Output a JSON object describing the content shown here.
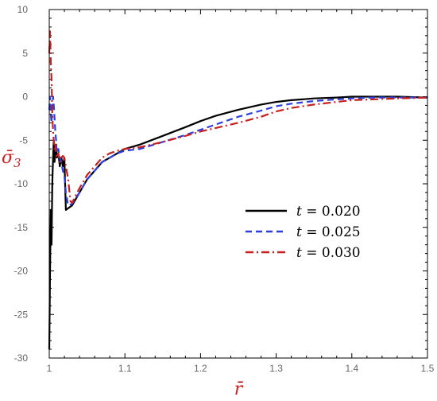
{
  "chart_data": {
    "type": "line",
    "title": "",
    "xlabel": "r̄",
    "ylabel": "σ̄",
    "ylabel_sub": "3",
    "xlim": [
      1.0,
      1.5
    ],
    "ylim": [
      -30,
      10
    ],
    "x_ticks": [
      1,
      1.1,
      1.2,
      1.3,
      1.4,
      1.5
    ],
    "x_tick_labels": [
      "1",
      "1.1",
      "1.2",
      "1.3",
      "1.4",
      "1.5"
    ],
    "y_ticks": [
      10,
      5,
      0,
      -5,
      -10,
      -15,
      -20,
      -25,
      -30
    ],
    "y_tick_labels": [
      "10",
      "5",
      "0",
      "-5",
      "-10",
      "-15",
      "-20",
      "-25",
      "-30"
    ],
    "grid": false,
    "legend_position": "center-right",
    "series": [
      {
        "name_var": "t",
        "name_eq": " = ",
        "name_val": "0.020",
        "color": "#000000",
        "dash": "solid",
        "x": [
          1.0,
          1.001,
          1.002,
          1.003,
          1.004,
          1.005,
          1.006,
          1.007,
          1.008,
          1.009,
          1.01,
          1.012,
          1.014,
          1.016,
          1.018,
          1.02,
          1.022,
          1.025,
          1.03,
          1.04,
          1.05,
          1.06,
          1.07,
          1.08,
          1.09,
          1.1,
          1.12,
          1.15,
          1.18,
          1.2,
          1.22,
          1.25,
          1.28,
          1.3,
          1.32,
          1.35,
          1.38,
          1.4,
          1.43,
          1.46,
          1.5
        ],
        "y": [
          -29,
          -20,
          -13,
          -17,
          -10,
          -7,
          -5,
          -7.5,
          -6,
          -5.5,
          -7,
          -6.5,
          -8,
          -7,
          -8,
          -7,
          -13,
          -12.8,
          -12.5,
          -11,
          -9.5,
          -8.5,
          -7.5,
          -7,
          -6.5,
          -6,
          -5.5,
          -4.5,
          -3.5,
          -2.8,
          -2.2,
          -1.5,
          -0.9,
          -0.6,
          -0.4,
          -0.2,
          -0.1,
          0,
          0,
          0,
          -0.1
        ]
      },
      {
        "name_var": "t",
        "name_eq": " = ",
        "name_val": "0.025",
        "color": "#2b3fe0",
        "dash": "8,5",
        "x": [
          1.0,
          1.001,
          1.002,
          1.003,
          1.004,
          1.005,
          1.006,
          1.007,
          1.008,
          1.009,
          1.01,
          1.012,
          1.014,
          1.016,
          1.018,
          1.02,
          1.022,
          1.025,
          1.03,
          1.04,
          1.05,
          1.06,
          1.07,
          1.08,
          1.09,
          1.1,
          1.12,
          1.15,
          1.18,
          1.2,
          1.22,
          1.25,
          1.28,
          1.3,
          1.32,
          1.35,
          1.38,
          1.4,
          1.43,
          1.46,
          1.5
        ],
        "y": [
          -1.5,
          0,
          -2,
          -3,
          -1,
          0,
          -1,
          -2.5,
          -4,
          -5,
          -6.5,
          -6,
          -7,
          -7.5,
          -8.5,
          -9,
          -11,
          -12.5,
          -12.3,
          -11,
          -9.5,
          -8.5,
          -7.5,
          -7,
          -6.5,
          -6.2,
          -6,
          -5.2,
          -4.4,
          -3.8,
          -3.2,
          -2.3,
          -1.6,
          -1.1,
          -0.8,
          -0.5,
          -0.3,
          -0.2,
          -0.1,
          -0.1,
          -0.1
        ]
      },
      {
        "name_var": "t",
        "name_eq": " = ",
        "name_val": "0.030",
        "color": "#c81e1e",
        "dash": "10,4,2,4",
        "x": [
          1.0,
          1.001,
          1.002,
          1.003,
          1.004,
          1.005,
          1.006,
          1.007,
          1.008,
          1.009,
          1.01,
          1.012,
          1.014,
          1.016,
          1.018,
          1.02,
          1.022,
          1.025,
          1.028,
          1.03,
          1.04,
          1.05,
          1.06,
          1.07,
          1.08,
          1.09,
          1.1,
          1.12,
          1.15,
          1.18,
          1.2,
          1.22,
          1.25,
          1.28,
          1.3,
          1.32,
          1.35,
          1.38,
          1.4,
          1.43,
          1.46,
          1.5
        ],
        "y": [
          5,
          7.5,
          4,
          2,
          -2,
          -4,
          -5,
          -6,
          -5.5,
          -6.5,
          -7,
          -6.5,
          -7.5,
          -7,
          -6.8,
          -7,
          -8,
          -9.5,
          -12,
          -12.2,
          -10.5,
          -9,
          -8,
          -7,
          -6.5,
          -6.2,
          -6,
          -5.8,
          -5.2,
          -4.5,
          -4,
          -3.6,
          -3,
          -2.3,
          -1.7,
          -1.3,
          -0.9,
          -0.6,
          -0.4,
          -0.3,
          -0.2,
          -0.1
        ]
      }
    ]
  }
}
